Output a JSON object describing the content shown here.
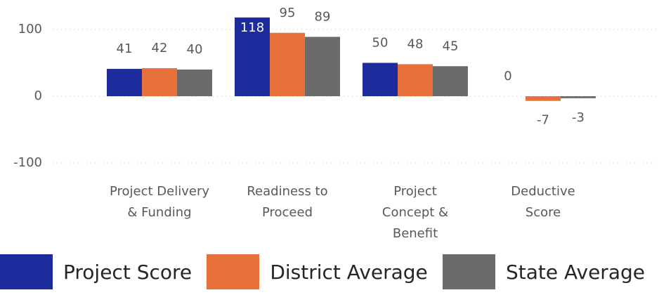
{
  "chart_data": {
    "type": "bar",
    "categories": [
      "Project Delivery\n& Funding",
      "Readiness to\nProceed",
      "Project\nConcept &\nBenefit",
      "Deductive\nScore"
    ],
    "series": [
      {
        "name": "Project Score",
        "color": "#1c2c9c",
        "values": [
          41,
          118,
          50,
          0
        ]
      },
      {
        "name": "District Average",
        "color": "#e8703a",
        "values": [
          42,
          95,
          48,
          -7
        ]
      },
      {
        "name": "State Average",
        "color": "#6b6b6b",
        "values": [
          40,
          89,
          45,
          -3
        ]
      }
    ],
    "ylim": [
      -100,
      120
    ],
    "yticks": [
      -100,
      0,
      100
    ],
    "grid": true
  }
}
